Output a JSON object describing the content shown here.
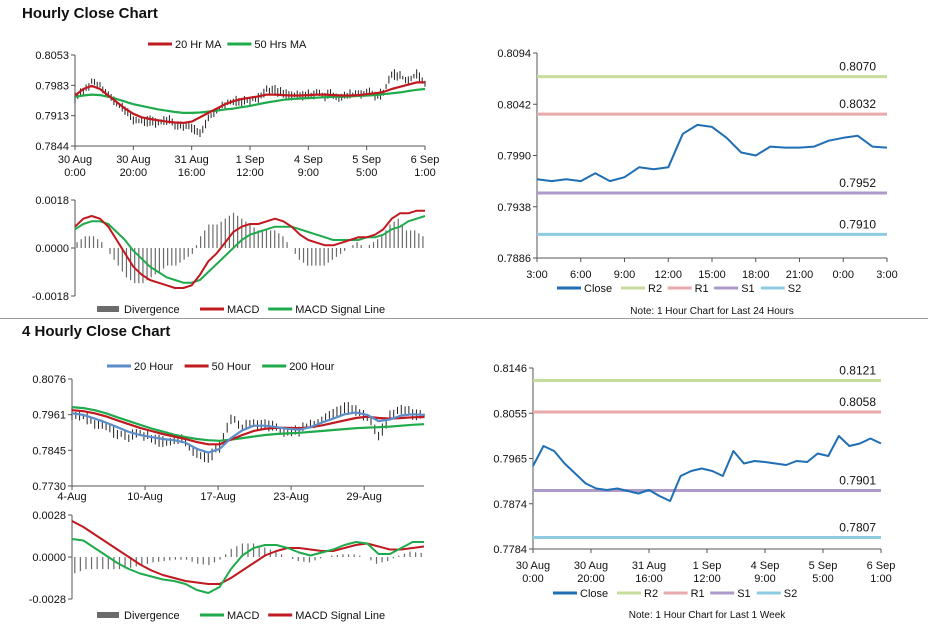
{
  "sections": {
    "hourly_title": "Hourly Close Chart",
    "four_hourly_title": "4 Hourly Close Chart"
  },
  "colors": {
    "red": "#c0191f",
    "green": "#1faa4b",
    "blue": "#1f6fb4",
    "steel_blue": "#5b8dc9",
    "gray": "#6b6b6b",
    "r2": "#c6dc9c",
    "r1": "#e8aaaa",
    "s1": "#ac9bc8",
    "s2": "#8ccbe0"
  },
  "chart_data": [
    {
      "id": "h_price",
      "type": "line",
      "legend": [
        "20 Hr MA",
        "50 Hrs MA"
      ],
      "x_ticks": [
        [
          "30 Aug",
          "0:00"
        ],
        [
          "30 Aug",
          "20:00"
        ],
        [
          "31 Aug",
          "16:00"
        ],
        [
          "1 Sep",
          "12:00"
        ],
        [
          "4 Sep",
          "9:00"
        ],
        [
          "5 Sep",
          "5:00"
        ],
        [
          "6 Sep",
          "1:00"
        ]
      ],
      "ylim": [
        0.7844,
        0.8053
      ],
      "y_ticks": [
        "0.8053",
        "0.7983",
        "0.7913",
        "0.7844"
      ],
      "price": [
        0.7955,
        0.7968,
        0.7992,
        0.7985,
        0.7962,
        0.794,
        0.7925,
        0.7905,
        0.79,
        0.7902,
        0.7898,
        0.7905,
        0.7895,
        0.789,
        0.7885,
        0.7878,
        0.7905,
        0.7925,
        0.794,
        0.7945,
        0.7948,
        0.795,
        0.7952,
        0.7975,
        0.7972,
        0.7965,
        0.796,
        0.7958,
        0.7962,
        0.7965,
        0.796,
        0.7962,
        0.7955,
        0.7962,
        0.7965,
        0.7968,
        0.7962,
        0.7965,
        0.801,
        0.8005,
        0.7995,
        0.8008,
        0.799
      ],
      "series": [
        {
          "name": "20 Hr MA",
          "values": [
            0.796,
            0.7975,
            0.7982,
            0.7975,
            0.796,
            0.7945,
            0.793,
            0.7918,
            0.791,
            0.7906,
            0.7903,
            0.79,
            0.7898,
            0.7897,
            0.79,
            0.791,
            0.792,
            0.793,
            0.794,
            0.7947,
            0.7952,
            0.7955,
            0.7958,
            0.7962,
            0.7962,
            0.7961,
            0.796,
            0.796,
            0.7961,
            0.7962,
            0.7962,
            0.7961,
            0.796,
            0.796,
            0.7961,
            0.7963,
            0.7965,
            0.7968,
            0.7975,
            0.798,
            0.7985,
            0.799,
            0.799
          ]
        },
        {
          "name": "50 Hrs MA",
          "values": [
            0.7957,
            0.796,
            0.7962,
            0.7961,
            0.7957,
            0.7952,
            0.7946,
            0.794,
            0.7936,
            0.7932,
            0.7928,
            0.7925,
            0.7922,
            0.792,
            0.792,
            0.7921,
            0.7923,
            0.7925,
            0.7928,
            0.793,
            0.7933,
            0.7936,
            0.794,
            0.7944,
            0.7947,
            0.795,
            0.7952,
            0.7953,
            0.7954,
            0.7955,
            0.7956,
            0.7957,
            0.7957,
            0.7958,
            0.7959,
            0.796,
            0.7961,
            0.7963,
            0.7965,
            0.7967,
            0.797,
            0.7973,
            0.7975
          ]
        }
      ]
    },
    {
      "id": "h_macd",
      "type": "line",
      "legend": [
        "Divergence",
        "MACD",
        "MACD Signal Line"
      ],
      "ylim": [
        -0.0018,
        0.0018
      ],
      "y_ticks": [
        "0.0018",
        "0.0000",
        "-0.0018"
      ],
      "series": [
        {
          "name": "MACD",
          "values": [
            0.0008,
            0.0011,
            0.0012,
            0.0011,
            0.0008,
            0.0003,
            -0.0002,
            -0.0007,
            -0.001,
            -0.0012,
            -0.0013,
            -0.0014,
            -0.0015,
            -0.0015,
            -0.0014,
            -0.001,
            -0.0005,
            -0.0002,
            0.0002,
            0.0006,
            0.0008,
            0.0009,
            0.0009,
            0.001,
            0.0011,
            0.001,
            0.0008,
            0.0005,
            0.0003,
            0.0002,
            0.0001,
            0.0001,
            0.0002,
            0.0003,
            0.0004,
            0.0004,
            0.0005,
            0.0007,
            0.0011,
            0.0013,
            0.0013,
            0.0014,
            0.0014
          ]
        },
        {
          "name": "MACD Signal Line",
          "values": [
            0.0007,
            0.0009,
            0.001,
            0.001,
            0.0009,
            0.0006,
            0.0003,
            -0.0001,
            -0.0004,
            -0.0007,
            -0.0009,
            -0.0011,
            -0.0012,
            -0.0013,
            -0.0013,
            -0.0012,
            -0.0009,
            -0.0006,
            -0.0003,
            0.0,
            0.0003,
            0.0005,
            0.0006,
            0.0007,
            0.0008,
            0.0008,
            0.0008,
            0.0007,
            0.0006,
            0.0005,
            0.0004,
            0.0003,
            0.0003,
            0.0003,
            0.0003,
            0.0004,
            0.0004,
            0.0005,
            0.0007,
            0.0008,
            0.001,
            0.0011,
            0.0012
          ]
        }
      ]
    },
    {
      "id": "h_close",
      "type": "line",
      "legend": [
        "Close",
        "R2",
        "R1",
        "S1",
        "S2"
      ],
      "x_ticks": [
        "3:00",
        "6:00",
        "9:00",
        "12:00",
        "15:00",
        "18:00",
        "21:00",
        "0:00",
        "3:00"
      ],
      "ylim": [
        0.7886,
        0.8094
      ],
      "y_ticks": [
        "0.8094",
        "0.8042",
        "0.7990",
        "0.7938",
        "0.7886"
      ],
      "note": "Note: 1 Hour Chart for Last 24 Hours",
      "levels": [
        {
          "name": "R2",
          "value": 0.807,
          "label": "0.8070"
        },
        {
          "name": "R1",
          "value": 0.8032,
          "label": "0.8032"
        },
        {
          "name": "S1",
          "value": 0.7952,
          "label": "0.7952"
        },
        {
          "name": "S2",
          "value": 0.791,
          "label": "0.7910"
        }
      ],
      "close": [
        0.7966,
        0.7964,
        0.7966,
        0.7964,
        0.7972,
        0.7964,
        0.7968,
        0.7978,
        0.7976,
        0.7978,
        0.8012,
        0.8021,
        0.8019,
        0.8008,
        0.7993,
        0.799,
        0.7999,
        0.7998,
        0.7998,
        0.7999,
        0.8005,
        0.8008,
        0.801,
        0.7999,
        0.7998
      ]
    },
    {
      "id": "4h_price",
      "type": "line",
      "legend": [
        "20 Hour",
        "50 Hour",
        "200 Hour"
      ],
      "x_ticks": [
        "4-Aug",
        "10-Aug",
        "17-Aug",
        "23-Aug",
        "29-Aug"
      ],
      "ylim": [
        0.773,
        0.8076
      ],
      "y_ticks": [
        "0.8076",
        "0.7961",
        "0.7845",
        "0.7730"
      ],
      "price": [
        0.7965,
        0.7955,
        0.7935,
        0.792,
        0.79,
        0.789,
        0.7905,
        0.788,
        0.787,
        0.788,
        0.7875,
        0.783,
        0.782,
        0.786,
        0.795,
        0.792,
        0.793,
        0.7925,
        0.792,
        0.7905,
        0.791,
        0.793,
        0.7945,
        0.796,
        0.7985,
        0.797,
        0.7955,
        0.789,
        0.796,
        0.798,
        0.7965,
        0.7958
      ],
      "series": [
        {
          "name": "20 Hour",
          "values": [
            0.7965,
            0.796,
            0.7948,
            0.7935,
            0.792,
            0.7905,
            0.7895,
            0.7888,
            0.7882,
            0.7878,
            0.787,
            0.785,
            0.7838,
            0.785,
            0.7885,
            0.791,
            0.7925,
            0.7925,
            0.792,
            0.7915,
            0.7912,
            0.792,
            0.7935,
            0.7948,
            0.7962,
            0.7968,
            0.796,
            0.794,
            0.7945,
            0.7958,
            0.7962,
            0.796
          ]
        },
        {
          "name": "50 Hour",
          "values": [
            0.7975,
            0.7972,
            0.7965,
            0.7955,
            0.7942,
            0.793,
            0.7918,
            0.7908,
            0.7898,
            0.789,
            0.7882,
            0.7872,
            0.7865,
            0.7865,
            0.788,
            0.7895,
            0.7908,
            0.7915,
            0.7918,
            0.7918,
            0.7917,
            0.792,
            0.7926,
            0.7934,
            0.7942,
            0.795,
            0.7954,
            0.795,
            0.7948,
            0.795,
            0.7952,
            0.7953
          ]
        },
        {
          "name": "200 Hour",
          "values": [
            0.7985,
            0.7982,
            0.7975,
            0.7965,
            0.7952,
            0.794,
            0.7928,
            0.7916,
            0.7906,
            0.7896,
            0.7888,
            0.7882,
            0.7878,
            0.7876,
            0.788,
            0.7885,
            0.789,
            0.7895,
            0.7898,
            0.79,
            0.7902,
            0.7905,
            0.7908,
            0.7911,
            0.7914,
            0.7917,
            0.7919,
            0.792,
            0.7922,
            0.7925,
            0.7928,
            0.793
          ]
        }
      ]
    },
    {
      "id": "4h_macd",
      "type": "line",
      "legend": [
        "Divergence",
        "MACD",
        "MACD Signal Line"
      ],
      "ylim": [
        -0.0028,
        0.0028
      ],
      "y_ticks": [
        "0.0028",
        "0.0000",
        "-0.0028"
      ],
      "series": [
        {
          "name": "MACD",
          "values": [
            0.0012,
            0.0011,
            0.0006,
            0.0001,
            -0.0004,
            -0.0008,
            -0.0011,
            -0.0013,
            -0.0015,
            -0.0016,
            -0.0018,
            -0.0022,
            -0.0024,
            -0.002,
            -0.0008,
            0.0001,
            0.0006,
            0.0008,
            0.0008,
            0.0006,
            0.0003,
            0.0001,
            0.0003,
            0.0005,
            0.0008,
            0.001,
            0.0009,
            0.0002,
            0.0002,
            0.0006,
            0.001,
            0.001
          ]
        },
        {
          "name": "MACD Signal Line",
          "values": [
            0.0024,
            0.002,
            0.0015,
            0.001,
            0.0005,
            0.0,
            -0.0005,
            -0.0009,
            -0.0012,
            -0.0014,
            -0.0016,
            -0.0017,
            -0.0018,
            -0.0018,
            -0.0014,
            -0.0009,
            -0.0004,
            0.0001,
            0.0004,
            0.0006,
            0.0006,
            0.0005,
            0.0004,
            0.0004,
            0.0006,
            0.0008,
            0.0009,
            0.0007,
            0.0005,
            0.0005,
            0.0006,
            0.0007
          ]
        }
      ]
    },
    {
      "id": "4h_close",
      "type": "line",
      "legend": [
        "Close",
        "R2",
        "R1",
        "S1",
        "S2"
      ],
      "x_ticks": [
        [
          "30 Aug",
          "0:00"
        ],
        [
          "30 Aug",
          "20:00"
        ],
        [
          "31 Aug",
          "16:00"
        ],
        [
          "1 Sep",
          "12:00"
        ],
        [
          "4 Sep",
          "9:00"
        ],
        [
          "5 Sep",
          "5:00"
        ],
        [
          "6 Sep",
          "1:00"
        ]
      ],
      "ylim": [
        0.7784,
        0.8146
      ],
      "y_ticks": [
        "0.8146",
        "0.8055",
        "0.7965",
        "0.7874",
        "0.7784"
      ],
      "note": "Note: 1 Hour Chart for Last 1 Week",
      "levels": [
        {
          "name": "R2",
          "value": 0.8121,
          "label": "0.8121"
        },
        {
          "name": "R1",
          "value": 0.8058,
          "label": "0.8058"
        },
        {
          "name": "S1",
          "value": 0.7901,
          "label": "0.7901"
        },
        {
          "name": "S2",
          "value": 0.7807,
          "label": "0.7807"
        }
      ],
      "close": [
        0.795,
        0.799,
        0.798,
        0.7955,
        0.7935,
        0.7915,
        0.7905,
        0.7902,
        0.7905,
        0.79,
        0.7895,
        0.7902,
        0.789,
        0.788,
        0.793,
        0.794,
        0.7945,
        0.794,
        0.793,
        0.798,
        0.7955,
        0.796,
        0.7958,
        0.7955,
        0.7952,
        0.796,
        0.7958,
        0.7975,
        0.797,
        0.801,
        0.799,
        0.7995,
        0.8005,
        0.7995
      ]
    }
  ]
}
